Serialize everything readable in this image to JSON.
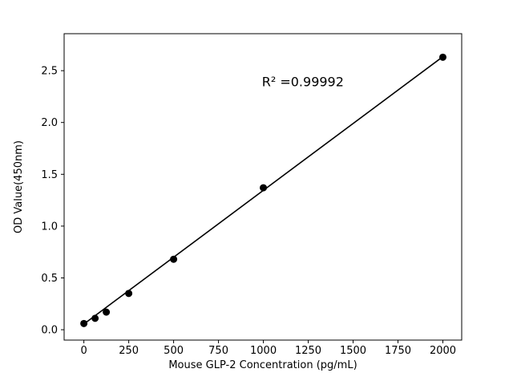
{
  "chart_data": {
    "type": "scatter",
    "title": "",
    "xlabel": "Mouse GLP-2 Concentration (pg/mL)",
    "ylabel": "OD Value(450nm)",
    "annotation": "R² =0.99992",
    "annotation_pos": {
      "x": 1220,
      "y": 2.35
    },
    "x": [
      0,
      62.5,
      125,
      250,
      500,
      1000,
      2000
    ],
    "y": [
      0.06,
      0.11,
      0.17,
      0.35,
      0.68,
      1.37,
      2.63
    ],
    "fit_line": {
      "x": [
        0,
        2000
      ],
      "y": [
        0.055,
        2.635
      ]
    },
    "xlim": [
      -110,
      2105
    ],
    "ylim": [
      -0.1,
      2.857
    ],
    "xticks": [
      0,
      250,
      500,
      750,
      1000,
      1250,
      1500,
      1750,
      2000
    ],
    "xtick_labels": [
      "0",
      "250",
      "500",
      "750",
      "1000",
      "1250",
      "1500",
      "1750",
      "2000"
    ],
    "yticks": [
      0.0,
      0.5,
      1.0,
      1.5,
      2.0,
      2.5
    ],
    "ytick_labels": [
      "0.0",
      "0.5",
      "1.0",
      "1.5",
      "2.0",
      "2.5"
    ],
    "grid": false,
    "legend": null,
    "marker_color": "#000000",
    "line_color": "#000000",
    "axis_color": "#000000",
    "background": "#ffffff"
  }
}
